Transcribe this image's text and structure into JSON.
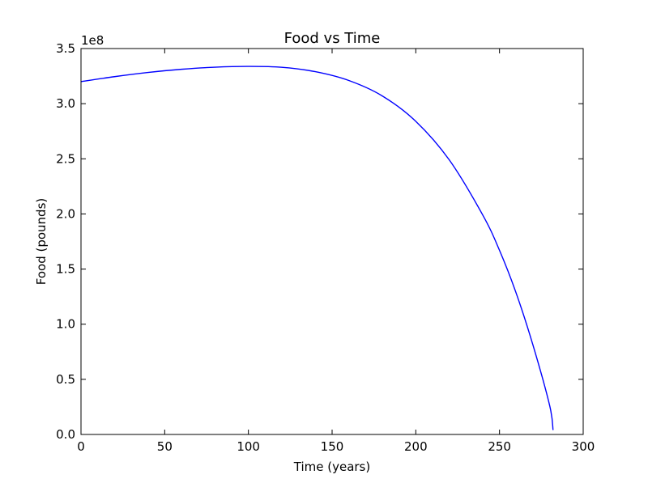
{
  "chart_data": {
    "type": "line",
    "title": "Food vs Time",
    "xlabel": "Time (years)",
    "ylabel": "Food (pounds)",
    "y_offset_label": "1e8",
    "y_multiplier": 100000000,
    "xlim": [
      0,
      300
    ],
    "ylim": [
      0,
      350000000
    ],
    "grid": false,
    "x_ticks": [
      0,
      50,
      100,
      150,
      200,
      250,
      300
    ],
    "x_tick_labels": [
      "0",
      "50",
      "100",
      "150",
      "200",
      "250",
      "300"
    ],
    "y_ticks": [
      0,
      50000000,
      100000000,
      150000000,
      200000000,
      250000000,
      300000000,
      350000000
    ],
    "y_tick_labels": [
      "0.0",
      "0.5",
      "1.0",
      "1.5",
      "2.0",
      "2.5",
      "3.0",
      "3.5"
    ],
    "series": [
      {
        "color": "#0000ff",
        "x": [
          0,
          20,
          40,
          60,
          80,
          100,
          120,
          140,
          160,
          180,
          200,
          220,
          240,
          250,
          260,
          270,
          280,
          282
        ],
        "y": [
          320000000,
          324500000,
          328300000,
          331200000,
          333100000,
          333800000,
          333000000,
          329000000,
          321000000,
          307000000,
          284000000,
          249000000,
          199000000,
          167000000,
          128000000,
          81000000,
          26000000,
          4000000
        ]
      }
    ]
  }
}
